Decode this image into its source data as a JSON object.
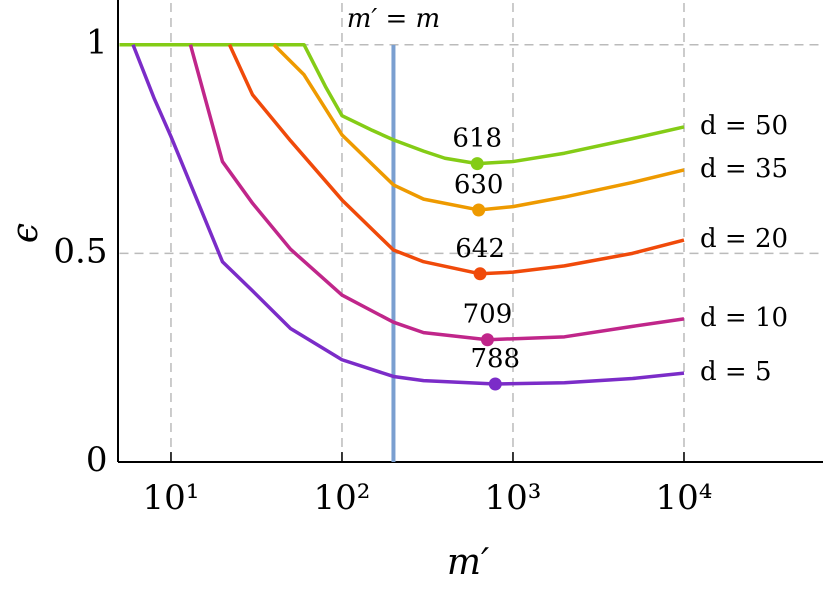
{
  "chart_data": {
    "type": "line",
    "x_label": "m′",
    "y_label": "ϵ",
    "xscale": "log",
    "xlim": [
      5,
      65000
    ],
    "ylim": [
      0,
      1.1
    ],
    "xticks": [
      {
        "value": 10,
        "label": "10¹"
      },
      {
        "value": 100,
        "label": "10²"
      },
      {
        "value": 1000,
        "label": "10³"
      },
      {
        "value": 10000,
        "label": "10⁴"
      }
    ],
    "yticks": [
      0,
      0.5,
      1
    ],
    "grid": true,
    "vline": {
      "x": 200,
      "label": "m′ = m",
      "color": "#7a9fd0"
    },
    "series": [
      {
        "name": "d = 50",
        "color": "#84cc16",
        "min_x": 618,
        "min_y": 0.715,
        "x": [
          5,
          60,
          80,
          100,
          150,
          200,
          300,
          400,
          618,
          1000,
          2000,
          5000,
          10000
        ],
        "values": [
          1,
          1,
          0.9,
          0.83,
          0.795,
          0.772,
          0.745,
          0.728,
          0.715,
          0.72,
          0.74,
          0.775,
          0.803
        ]
      },
      {
        "name": "d = 35",
        "color": "#ee9a00",
        "min_x": 630,
        "min_y": 0.604,
        "x": [
          40,
          60,
          100,
          200,
          300,
          630,
          1000,
          2000,
          5000,
          10000
        ],
        "values": [
          1,
          0.928,
          0.784,
          0.664,
          0.63,
          0.604,
          0.612,
          0.635,
          0.67,
          0.7
        ]
      },
      {
        "name": "d = 20",
        "color": "#f04a0a",
        "min_x": 642,
        "min_y": 0.451,
        "x": [
          22,
          30,
          50,
          100,
          200,
          300,
          642,
          1000,
          2000,
          5000,
          10000
        ],
        "values": [
          1,
          0.88,
          0.77,
          0.628,
          0.508,
          0.48,
          0.451,
          0.455,
          0.47,
          0.5,
          0.532
        ]
      },
      {
        "name": "d = 10",
        "color": "#c0268a",
        "min_x": 709,
        "min_y": 0.293,
        "x": [
          13,
          20,
          30,
          50,
          100,
          200,
          300,
          709,
          2000,
          5000,
          10000
        ],
        "values": [
          1,
          0.72,
          0.62,
          0.51,
          0.4,
          0.335,
          0.31,
          0.293,
          0.3,
          0.325,
          0.343
        ]
      },
      {
        "name": "d = 5",
        "color": "#7b2cc8",
        "min_x": 788,
        "min_y": 0.187,
        "x": [
          6,
          8,
          10,
          20,
          30,
          50,
          100,
          200,
          300,
          788,
          2000,
          5000,
          10000
        ],
        "values": [
          1,
          0.87,
          0.78,
          0.48,
          0.41,
          0.32,
          0.245,
          0.205,
          0.195,
          0.187,
          0.19,
          0.2,
          0.213
        ]
      }
    ]
  }
}
